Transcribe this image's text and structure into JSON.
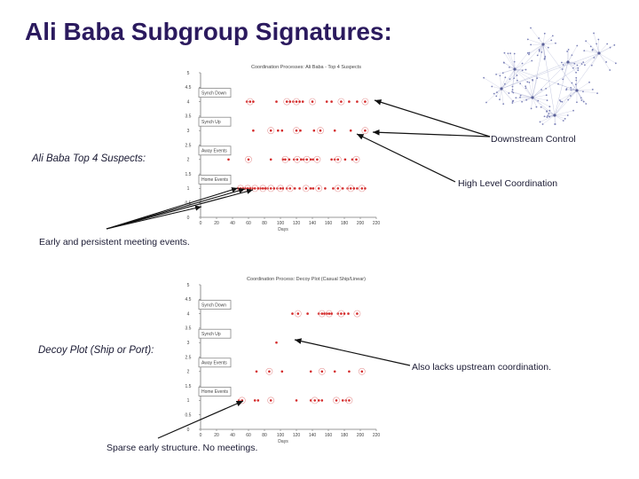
{
  "title": "Ali Baba Subgroup Signatures:",
  "annotations": {
    "downstream_control": "Downstream Control",
    "top4_suspects": "Ali Baba Top 4 Suspects:",
    "high_level": "High Level Coordination",
    "early_meetings": "Early and persistent meeting events.",
    "decoy_plot": "Decoy Plot (Ship or Port):",
    "lacks_upstream": "Also lacks upstream coordination.",
    "sparse": "Sparse early structure. No meetings."
  },
  "colors": {
    "title": "#2b1a5e",
    "event_dot": "#d42a2a",
    "arrow": "#111111",
    "network": "#9aa0c8"
  },
  "chart_data": [
    {
      "type": "scatter",
      "title": "Coordination Processes: Ali Baba - Top 4 Suspects",
      "xlabel": "Days",
      "ylabel": "",
      "xlim": [
        0,
        220
      ],
      "ylim": [
        0,
        5
      ],
      "x_ticks": [
        "0",
        "20",
        "40",
        "60",
        "80",
        "100",
        "120",
        "140",
        "160",
        "180",
        "200",
        "220"
      ],
      "y_ticks": [
        "5",
        "4.5",
        "4",
        "3.5",
        "3",
        "2.5",
        "2",
        "1.5",
        "1",
        "0.5",
        "0"
      ],
      "legend": [
        "Synch Down",
        "Synch Up",
        "Away Events",
        "Home Events"
      ],
      "series": [
        {
          "name": "Synch Down",
          "y": 4,
          "x": [
            58,
            62,
            66,
            95,
            108,
            112,
            116,
            120,
            124,
            128,
            140,
            158,
            164,
            176,
            186,
            196,
            206
          ]
        },
        {
          "name": "Synch Up",
          "y": 3,
          "x": [
            66,
            88,
            97,
            102,
            120,
            125,
            142,
            150,
            168,
            188,
            206
          ]
        },
        {
          "name": "Away Events",
          "y": 2,
          "x": [
            35,
            60,
            88,
            103,
            106,
            111,
            117,
            121,
            126,
            129,
            133,
            138,
            141,
            146,
            164,
            168,
            172,
            181,
            190,
            195
          ]
        },
        {
          "name": "Home Events",
          "y": 1,
          "x": [
            47,
            50,
            53,
            56,
            59,
            62,
            65,
            68,
            72,
            75,
            78,
            81,
            84,
            88,
            92,
            96,
            100,
            103,
            108,
            112,
            118,
            124,
            132,
            138,
            141,
            148,
            156,
            166,
            172,
            178,
            184,
            188,
            192,
            196,
            202,
            206
          ]
        }
      ]
    },
    {
      "type": "scatter",
      "title": "Coordination Process: Decoy Plot (Casual Ship/Linear)",
      "xlabel": "Days",
      "ylabel": "",
      "xlim": [
        0,
        220
      ],
      "ylim": [
        0,
        5
      ],
      "x_ticks": [
        "0",
        "20",
        "40",
        "60",
        "80",
        "100",
        "120",
        "140",
        "160",
        "180",
        "200",
        "220"
      ],
      "y_ticks": [
        "5",
        "4.5",
        "4",
        "3.5",
        "3",
        "2.5",
        "2",
        "1.5",
        "1",
        "0.5",
        "0"
      ],
      "legend": [
        "Synch Down",
        "Synch Up",
        "Away Events",
        "Home Events"
      ],
      "series": [
        {
          "name": "Synch Down",
          "y": 4,
          "x": [
            115,
            122,
            134,
            148,
            152,
            155,
            158,
            161,
            164,
            172,
            176,
            180,
            185,
            196
          ]
        },
        {
          "name": "Synch Up",
          "y": 3,
          "x": [
            95
          ]
        },
        {
          "name": "Away Events",
          "y": 2,
          "x": [
            70,
            86,
            102,
            138,
            152,
            168,
            186,
            202
          ]
        },
        {
          "name": "Home Events",
          "y": 1,
          "x": [
            48,
            52,
            68,
            72,
            88,
            120,
            138,
            143,
            148,
            152,
            170,
            178,
            182,
            186
          ]
        }
      ]
    }
  ]
}
